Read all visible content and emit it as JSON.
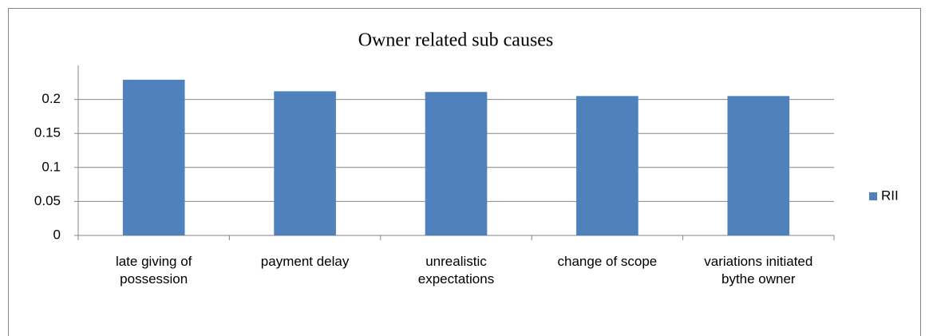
{
  "chart_data": {
    "type": "bar",
    "title": "Owner related sub  causes",
    "categories": [
      "late giving of possession",
      "payment delay",
      "unrealistic expectations",
      "change of scope",
      "variations initiated bythe owner"
    ],
    "series": [
      {
        "name": "RII",
        "color": "#4f81bd",
        "values": [
          0.229,
          0.212,
          0.211,
          0.205,
          0.205
        ]
      }
    ],
    "ylim": [
      0,
      0.25
    ],
    "yticks": [
      0,
      0.05,
      0.1,
      0.15,
      0.2
    ],
    "grid": true,
    "legend": "right"
  }
}
